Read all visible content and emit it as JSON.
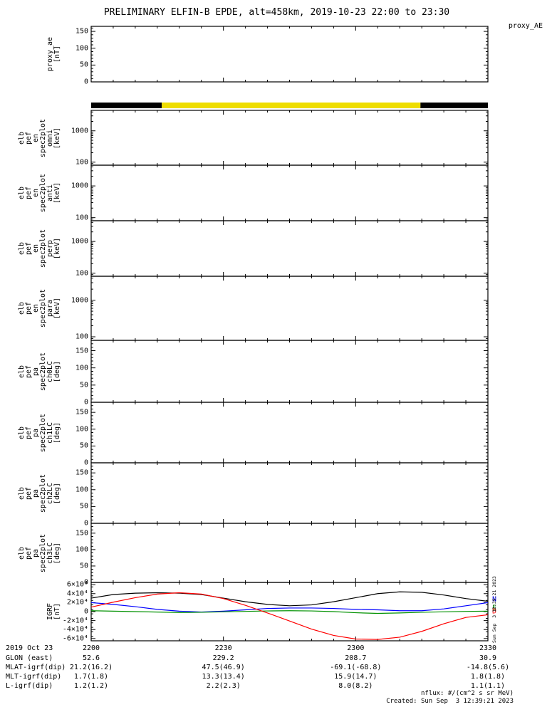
{
  "title": "PRELIMINARY ELFIN-B EPDE, alt=458km, 2019-10-23 22:00 to 23:30",
  "proxy_legend": "proxy_AE",
  "side_timestamp": "Sun Sep  3 12:39:21 2023",
  "footer": {
    "nflux": "nflux: #/(cm^2 s sr MeV)",
    "created": "Created: Sun Sep  3 12:39:21 2023"
  },
  "status_bar": {
    "segments": [
      {
        "color": "#000000",
        "from": 0.0,
        "to": 0.178
      },
      {
        "color": "#eedd00",
        "from": 0.178,
        "to": 0.83
      },
      {
        "color": "#000000",
        "from": 0.83,
        "to": 1.0
      }
    ]
  },
  "bottom_axis": {
    "rows": [
      {
        "label": "2019 Oct 23",
        "values": [
          "2200",
          "2230",
          "2300",
          "2330"
        ]
      },
      {
        "label": "GLON (east)",
        "values": [
          "52.6",
          "229.2",
          "208.7",
          "30.9"
        ]
      },
      {
        "label": "MLAT-igrf(dip)",
        "values": [
          "21.2(16.2)",
          "47.5(46.9)",
          "-69.1(-68.8)",
          "-14.8(5.6)"
        ]
      },
      {
        "label": "MLT-igrf(dip)",
        "values": [
          "1.7(1.8)",
          "13.3(13.4)",
          "15.9(14.7)",
          "1.8(1.8)"
        ]
      },
      {
        "label": "L-igrf(dip)",
        "values": [
          "1.2(1.2)",
          "2.2(2.3)",
          "8.0(8.2)",
          "1.1(1.1)"
        ]
      }
    ]
  },
  "chart_data": {
    "type": "multi-panel-time-series",
    "x_axis": {
      "start": "2019-10-23 22:00",
      "end": "2019-10-23 23:30",
      "tick_minutes": [
        0,
        30,
        60,
        90
      ],
      "tick_labels": [
        "2200",
        "2230",
        "2300",
        "2330"
      ],
      "minor_step_minutes": 5
    },
    "panels": [
      {
        "id": "proxy_ae",
        "ylabel_lines": [
          "proxy_ae",
          "[nT]"
        ],
        "scale": "linear",
        "ylim": [
          0,
          165
        ],
        "minor_step": 10,
        "yticks": [
          {
            "v": 0,
            "label": "0"
          },
          {
            "v": 50,
            "label": "50"
          },
          {
            "v": 100,
            "label": "100"
          },
          {
            "v": 150,
            "label": "150"
          }
        ],
        "series": []
      },
      {
        "id": "epde_energy_omni",
        "ylabel_lines": [
          "elb",
          "pef",
          "en",
          "spec2plot",
          "omni",
          "[keV]"
        ],
        "scale": "log",
        "ylim": [
          80,
          4500
        ],
        "yticks": [
          {
            "v": 100,
            "label": "100"
          },
          {
            "v": 1000,
            "label": "1000"
          }
        ],
        "yminor": [
          90,
          200,
          300,
          400,
          500,
          600,
          700,
          800,
          900,
          2000,
          3000,
          4000
        ],
        "series": []
      },
      {
        "id": "epde_energy_anti",
        "ylabel_lines": [
          "elb",
          "pef",
          "en",
          "spec2plot",
          "anti",
          "[keV]"
        ],
        "scale": "log",
        "ylim": [
          80,
          4500
        ],
        "yticks": [
          {
            "v": 100,
            "label": "100"
          },
          {
            "v": 1000,
            "label": "1000"
          }
        ],
        "yminor": [
          90,
          200,
          300,
          400,
          500,
          600,
          700,
          800,
          900,
          2000,
          3000,
          4000
        ],
        "series": []
      },
      {
        "id": "epde_energy_perp",
        "ylabel_lines": [
          "elb",
          "pef",
          "en",
          "spec2plot",
          "perp",
          "[keV]"
        ],
        "scale": "log",
        "ylim": [
          80,
          4500
        ],
        "yticks": [
          {
            "v": 100,
            "label": "100"
          },
          {
            "v": 1000,
            "label": "1000"
          }
        ],
        "yminor": [
          90,
          200,
          300,
          400,
          500,
          600,
          700,
          800,
          900,
          2000,
          3000,
          4000
        ],
        "series": []
      },
      {
        "id": "epde_energy_para",
        "ylabel_lines": [
          "elb",
          "pef",
          "en",
          "spec2plot",
          "para",
          "[keV]"
        ],
        "scale": "log",
        "ylim": [
          80,
          4500
        ],
        "yticks": [
          {
            "v": 100,
            "label": "100"
          },
          {
            "v": 1000,
            "label": "1000"
          }
        ],
        "yminor": [
          90,
          200,
          300,
          400,
          500,
          600,
          700,
          800,
          900,
          2000,
          3000,
          4000
        ],
        "series": []
      },
      {
        "id": "epde_pa_ch0LC",
        "ylabel_lines": [
          "elb",
          "pef",
          "pa",
          "spec2plot",
          "ch0LC",
          "[deg]"
        ],
        "scale": "linear",
        "ylim": [
          0,
          180
        ],
        "minor_step": 10,
        "yticks": [
          {
            "v": 0,
            "label": "0"
          },
          {
            "v": 50,
            "label": "50"
          },
          {
            "v": 100,
            "label": "100"
          },
          {
            "v": 150,
            "label": "150"
          }
        ],
        "series": []
      },
      {
        "id": "epde_pa_ch1LC",
        "ylabel_lines": [
          "elb",
          "pef",
          "pa",
          "spec2plot",
          "ch1LC",
          "[deg]"
        ],
        "scale": "linear",
        "ylim": [
          0,
          180
        ],
        "minor_step": 10,
        "yticks": [
          {
            "v": 0,
            "label": "0"
          },
          {
            "v": 50,
            "label": "50"
          },
          {
            "v": 100,
            "label": "100"
          },
          {
            "v": 150,
            "label": "150"
          }
        ],
        "series": []
      },
      {
        "id": "epde_pa_ch2LC",
        "ylabel_lines": [
          "elb",
          "pef",
          "pa",
          "spec2plot",
          "ch2LC",
          "[deg]"
        ],
        "scale": "linear",
        "ylim": [
          0,
          180
        ],
        "minor_step": 10,
        "yticks": [
          {
            "v": 0,
            "label": "0"
          },
          {
            "v": 50,
            "label": "50"
          },
          {
            "v": 100,
            "label": "100"
          },
          {
            "v": 150,
            "label": "150"
          }
        ],
        "series": []
      },
      {
        "id": "epde_pa_ch3LC",
        "ylabel_lines": [
          "elb",
          "pef",
          "pa",
          "spec2plot",
          "ch3LC",
          "[deg]"
        ],
        "scale": "linear",
        "ylim": [
          0,
          180
        ],
        "minor_step": 10,
        "yticks": [
          {
            "v": 0,
            "label": "0"
          },
          {
            "v": 50,
            "label": "50"
          },
          {
            "v": 100,
            "label": "100"
          },
          {
            "v": 150,
            "label": "150"
          }
        ],
        "series": []
      },
      {
        "id": "igrf",
        "ylabel_lines": [
          "IGRF",
          "[nT]"
        ],
        "scale": "linear",
        "ylim": [
          -65000,
          65000
        ],
        "minor_step": 10000,
        "yticks": [
          {
            "v": 60000,
            "label": "6×10⁴"
          },
          {
            "v": 40000,
            "label": "4×10⁴"
          },
          {
            "v": 20000,
            "label": "2×10⁴"
          },
          {
            "v": 0,
            "label": "0"
          },
          {
            "v": -20000,
            "label": "-2×10⁴"
          },
          {
            "v": -40000,
            "label": "-4×10⁴"
          },
          {
            "v": -60000,
            "label": "-6×10⁴"
          }
        ],
        "x_minutes": [
          0,
          5,
          10,
          15,
          20,
          25,
          30,
          35,
          40,
          45,
          50,
          55,
          60,
          65,
          70,
          75,
          80,
          85,
          90
        ],
        "series": [
          {
            "name": "B",
            "color": "#000000",
            "values": [
              30000,
              38000,
              41000,
              42000,
              41000,
              38000,
              30000,
              22000,
              16000,
              13000,
              15000,
              22000,
              31000,
              40000,
              44000,
              43000,
              37000,
              29000,
              23000
            ]
          },
          {
            "name": "N",
            "color": "#0000ff",
            "values": [
              20000,
              16000,
              11000,
              5000,
              1000,
              -1000,
              1000,
              4000,
              7000,
              8000,
              8000,
              7000,
              5000,
              4000,
              2000,
              2000,
              6000,
              13000,
              20000
            ]
          },
          {
            "name": "E",
            "color": "#009100",
            "values": [
              2000,
              1000,
              0,
              -1000,
              -2000,
              -1500,
              -500,
              500,
              1500,
              2000,
              1500,
              0,
              -2500,
              -4000,
              -3000,
              -1500,
              -500,
              500,
              1000
            ]
          },
          {
            "name": "D",
            "color": "#ff0000",
            "values": [
              10000,
              21000,
              31000,
              39000,
              42000,
              39000,
              29000,
              14000,
              -3000,
              -21000,
              -39000,
              -53000,
              -61000,
              -62000,
              -57000,
              -44000,
              -27000,
              -13000,
              -7000
            ]
          }
        ],
        "legend": [
          {
            "text": "N",
            "color": "#0000ff"
          },
          {
            "text": "E",
            "color": "#009100"
          },
          {
            "text": "D",
            "color": "#ff0000"
          }
        ]
      }
    ]
  }
}
